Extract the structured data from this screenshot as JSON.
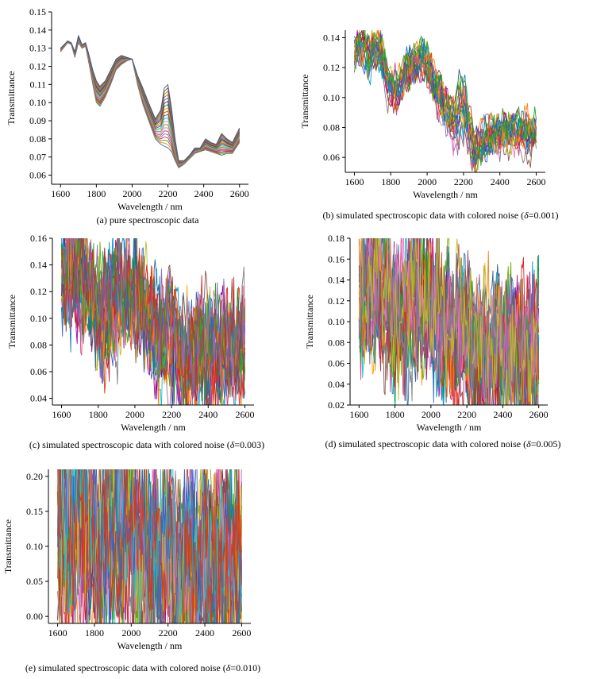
{
  "palette": [
    "#1f77b4",
    "#ff7f0e",
    "#2ca02c",
    "#d62728",
    "#9467bd",
    "#8c564b",
    "#e377c2",
    "#7f7f7f",
    "#bcbd22",
    "#17becf",
    "#3366cc",
    "#dc3912",
    "#ff9900",
    "#109618",
    "#990099",
    "#0099c6",
    "#dd4477",
    "#66aa00",
    "#b82e2e",
    "#316395"
  ],
  "chart_data": [
    {
      "id": "a",
      "type": "line",
      "caption_parts": [
        "(a) pure spectroscopic data"
      ],
      "xlabel": "Wavelength / nm",
      "ylabel": "Transmittance",
      "xlim": [
        1550,
        2650
      ],
      "ylim": [
        0.055,
        0.15
      ],
      "xticks": [
        "1600",
        "1800",
        "2000",
        "2200",
        "2400",
        "2600"
      ],
      "yticks": [
        "0.06",
        "0.07",
        "0.08",
        "0.09",
        "0.10",
        "0.11",
        "0.12",
        "0.13",
        "0.14",
        "0.15"
      ],
      "noise_delta": 0,
      "n_series": 20,
      "base_curve": {
        "x": [
          1600,
          1640,
          1660,
          1680,
          1700,
          1720,
          1740,
          1760,
          1780,
          1800,
          1820,
          1850,
          1880,
          1910,
          1940,
          1970,
          2000,
          2030,
          2060,
          2100,
          2130,
          2160,
          2180,
          2200,
          2220,
          2240,
          2260,
          2290,
          2320,
          2350,
          2380,
          2410,
          2440,
          2470,
          2500,
          2530,
          2560,
          2600
        ],
        "upper": [
          0.13,
          0.134,
          0.133,
          0.128,
          0.137,
          0.132,
          0.133,
          0.126,
          0.118,
          0.112,
          0.109,
          0.112,
          0.118,
          0.124,
          0.126,
          0.125,
          0.124,
          0.115,
          0.108,
          0.098,
          0.091,
          0.096,
          0.108,
          0.11,
          0.097,
          0.08,
          0.068,
          0.068,
          0.071,
          0.075,
          0.075,
          0.08,
          0.078,
          0.077,
          0.083,
          0.08,
          0.078,
          0.086
        ],
        "lower": [
          0.128,
          0.133,
          0.132,
          0.125,
          0.133,
          0.13,
          0.131,
          0.121,
          0.11,
          0.1,
          0.098,
          0.103,
          0.11,
          0.118,
          0.121,
          0.123,
          0.124,
          0.11,
          0.099,
          0.088,
          0.08,
          0.077,
          0.076,
          0.075,
          0.073,
          0.068,
          0.064,
          0.066,
          0.069,
          0.072,
          0.073,
          0.074,
          0.073,
          0.072,
          0.071,
          0.072,
          0.072,
          0.078
        ]
      }
    },
    {
      "id": "b",
      "type": "line",
      "caption_parts": [
        "(b) simulated spectroscopic data with colored noise (",
        "δ",
        "=0.001)"
      ],
      "xlabel": "Wavelength / nm",
      "ylabel": "Transmittance",
      "xlim": [
        1550,
        2650
      ],
      "ylim": [
        0.05,
        0.145
      ],
      "xticks": [
        "1600",
        "1800",
        "2000",
        "2200",
        "2400",
        "2600"
      ],
      "yticks": [
        "0.06",
        "0.08",
        "0.10",
        "0.12",
        "0.14"
      ],
      "noise_delta": 0.001,
      "n_series": 20
    },
    {
      "id": "c",
      "type": "line",
      "caption_parts": [
        "(c) simulated spectroscopic data with colored noise (",
        "δ",
        "=0.003)"
      ],
      "xlabel": "Wavelength / nm",
      "ylabel": "Transmittance",
      "xlim": [
        1550,
        2650
      ],
      "ylim": [
        0.035,
        0.16
      ],
      "xticks": [
        "1600",
        "1800",
        "2000",
        "2200",
        "2400",
        "2600"
      ],
      "yticks": [
        "0.04",
        "0.06",
        "0.08",
        "0.10",
        "0.12",
        "0.14",
        "0.16"
      ],
      "noise_delta": 0.003,
      "n_series": 20
    },
    {
      "id": "d",
      "type": "line",
      "caption_parts": [
        "(d) simulated spectroscopic data with colored noise (",
        "δ",
        "=0.005)"
      ],
      "xlabel": "Wavelength / nm",
      "ylabel": "Transmittance",
      "xlim": [
        1550,
        2650
      ],
      "ylim": [
        0.02,
        0.18
      ],
      "xticks": [
        "1600",
        "1800",
        "2000",
        "2200",
        "2400",
        "2600"
      ],
      "yticks": [
        "0.02",
        "0.04",
        "0.06",
        "0.08",
        "0.10",
        "0.12",
        "0.14",
        "0.16",
        "0.18"
      ],
      "noise_delta": 0.005,
      "n_series": 20
    },
    {
      "id": "e",
      "type": "line",
      "caption_parts": [
        "(e) simulated spectroscopic data with colored noise (",
        "δ",
        "=0.010)"
      ],
      "xlabel": "Wavelength / nm",
      "ylabel": "Transmittance",
      "xlim": [
        1550,
        2650
      ],
      "ylim": [
        -0.01,
        0.21
      ],
      "xticks": [
        "1600",
        "1800",
        "2000",
        "2200",
        "2400",
        "2600"
      ],
      "yticks": [
        "0.00",
        "0.05",
        "0.10",
        "0.15",
        "0.20"
      ],
      "noise_delta": 0.01,
      "n_series": 20
    }
  ]
}
